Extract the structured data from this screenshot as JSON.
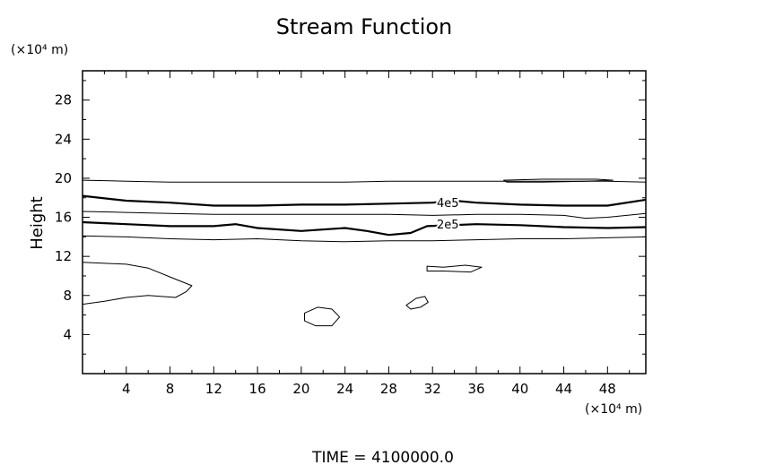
{
  "chart_data": {
    "type": "contour",
    "title": "Stream Function",
    "xlabel": "",
    "ylabel": "Height",
    "x_unit_label": "(×10⁴ m)",
    "y_unit_label": "(×10⁴ m)",
    "xlim": [
      0,
      51.5
    ],
    "ylim": [
      0,
      31
    ],
    "x_ticks": [
      4,
      8,
      12,
      16,
      20,
      24,
      28,
      32,
      36,
      40,
      44,
      48
    ],
    "y_ticks": [
      4,
      8,
      12,
      16,
      20,
      24,
      28
    ],
    "footer": "TIME  =  4100000.0",
    "contour_labels": [
      {
        "text": "4e5",
        "x": 33.4,
        "y": 17.5
      },
      {
        "text": "2e5",
        "x": 33.4,
        "y": 15.3
      }
    ],
    "contours": [
      {
        "style": "thin",
        "closed": false,
        "points": [
          [
            0,
            19.8
          ],
          [
            4,
            19.7
          ],
          [
            8,
            19.6
          ],
          [
            12,
            19.6
          ],
          [
            16,
            19.6
          ],
          [
            20,
            19.6
          ],
          [
            24,
            19.6
          ],
          [
            28,
            19.7
          ],
          [
            32,
            19.7
          ],
          [
            36,
            19.7
          ],
          [
            40,
            19.7
          ],
          [
            44,
            19.7
          ],
          [
            48,
            19.7
          ],
          [
            51.5,
            19.6
          ]
        ]
      },
      {
        "style": "thick",
        "closed": false,
        "points": [
          [
            0,
            18.2
          ],
          [
            4,
            17.7
          ],
          [
            8,
            17.5
          ],
          [
            12,
            17.2
          ],
          [
            16,
            17.2
          ],
          [
            20,
            17.3
          ],
          [
            24,
            17.3
          ],
          [
            28,
            17.4
          ],
          [
            32,
            17.5
          ],
          [
            34,
            17.7
          ],
          [
            36,
            17.5
          ],
          [
            40,
            17.3
          ],
          [
            44,
            17.2
          ],
          [
            48,
            17.2
          ],
          [
            51.5,
            17.8
          ]
        ]
      },
      {
        "style": "thin",
        "closed": false,
        "points": [
          [
            0,
            16.6
          ],
          [
            4,
            16.5
          ],
          [
            8,
            16.4
          ],
          [
            12,
            16.3
          ],
          [
            16,
            16.3
          ],
          [
            20,
            16.3
          ],
          [
            24,
            16.3
          ],
          [
            28,
            16.3
          ],
          [
            32,
            16.2
          ],
          [
            36,
            16.3
          ],
          [
            40,
            16.3
          ],
          [
            44,
            16.2
          ],
          [
            46,
            15.9
          ],
          [
            48,
            16.0
          ],
          [
            51.5,
            16.4
          ]
        ]
      },
      {
        "style": "thick",
        "closed": false,
        "points": [
          [
            0,
            15.5
          ],
          [
            4,
            15.3
          ],
          [
            8,
            15.1
          ],
          [
            12,
            15.1
          ],
          [
            14,
            15.3
          ],
          [
            16,
            14.9
          ],
          [
            20,
            14.6
          ],
          [
            24,
            14.9
          ],
          [
            26,
            14.6
          ],
          [
            28,
            14.2
          ],
          [
            30,
            14.4
          ],
          [
            31.5,
            15.1
          ],
          [
            36,
            15.3
          ],
          [
            40,
            15.2
          ],
          [
            44,
            15.0
          ],
          [
            48,
            14.9
          ],
          [
            51.5,
            15.0
          ]
        ]
      },
      {
        "style": "thin",
        "closed": false,
        "points": [
          [
            0,
            14.1
          ],
          [
            4,
            14.0
          ],
          [
            8,
            13.8
          ],
          [
            12,
            13.7
          ],
          [
            16,
            13.8
          ],
          [
            20,
            13.6
          ],
          [
            24,
            13.5
          ],
          [
            28,
            13.6
          ],
          [
            32,
            13.6
          ],
          [
            36,
            13.7
          ],
          [
            40,
            13.8
          ],
          [
            44,
            13.8
          ],
          [
            48,
            13.9
          ],
          [
            51.5,
            14.0
          ]
        ]
      },
      {
        "style": "thin",
        "closed": false,
        "points": [
          [
            0,
            11.4
          ],
          [
            4,
            11.2
          ],
          [
            6,
            10.8
          ],
          [
            8,
            9.9
          ],
          [
            10,
            9.0
          ],
          [
            9.5,
            8.4
          ],
          [
            8.5,
            7.8
          ],
          [
            6,
            8.0
          ],
          [
            4,
            7.8
          ],
          [
            2,
            7.4
          ],
          [
            0,
            7.1
          ]
        ]
      },
      {
        "style": "thin",
        "closed": true,
        "points": [
          [
            31.5,
            11.0
          ],
          [
            33,
            10.9
          ],
          [
            35,
            11.1
          ],
          [
            36.5,
            10.9
          ],
          [
            35.5,
            10.4
          ],
          [
            33,
            10.5
          ],
          [
            31.5,
            10.5
          ]
        ]
      },
      {
        "style": "thin",
        "closed": true,
        "points": [
          [
            20.3,
            6.2
          ],
          [
            21.5,
            6.8
          ],
          [
            22.8,
            6.6
          ],
          [
            23.5,
            5.8
          ],
          [
            22.8,
            4.9
          ],
          [
            21.3,
            4.9
          ],
          [
            20.3,
            5.4
          ]
        ]
      },
      {
        "style": "thin",
        "closed": true,
        "points": [
          [
            29.6,
            7.0
          ],
          [
            30.5,
            7.7
          ],
          [
            31.3,
            7.9
          ],
          [
            31.6,
            7.3
          ],
          [
            30.9,
            6.8
          ],
          [
            30.0,
            6.6
          ]
        ]
      },
      {
        "style": "thin",
        "closed": true,
        "points": [
          [
            38.5,
            19.8
          ],
          [
            42,
            19.9
          ],
          [
            47,
            19.9
          ],
          [
            48.5,
            19.8
          ],
          [
            46,
            19.7
          ],
          [
            42,
            19.6
          ],
          [
            38.8,
            19.6
          ]
        ]
      }
    ]
  }
}
